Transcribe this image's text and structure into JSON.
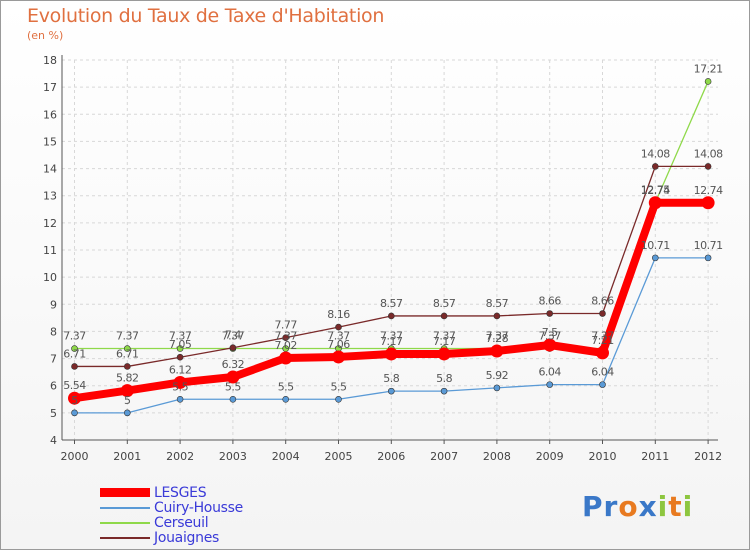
{
  "header": {
    "title": "Evolution du Taux de Taxe d'Habitation",
    "subtitle": "(en %)"
  },
  "logo": {
    "text": "Proxiti",
    "letters": [
      {
        "ch": "P",
        "color": "#3a78c8"
      },
      {
        "ch": "r",
        "color": "#3a78c8"
      },
      {
        "ch": "o",
        "color": "#e87a20"
      },
      {
        "ch": "x",
        "color": "#3a78c8"
      },
      {
        "ch": "i",
        "color": "#8dc63f"
      },
      {
        "ch": "t",
        "color": "#e87a20"
      },
      {
        "ch": "i",
        "color": "#8dc63f"
      }
    ]
  },
  "chart_data": {
    "type": "line",
    "title": "Evolution du Taux de Taxe d'Habitation",
    "subtitle": "(en %)",
    "xlabel": "",
    "ylabel": "",
    "x": [
      "2000",
      "2001",
      "2002",
      "2003",
      "2004",
      "2005",
      "2006",
      "2007",
      "2008",
      "2009",
      "2010",
      "2011",
      "2012"
    ],
    "ylim": [
      4,
      18
    ],
    "yticks": [
      "4",
      "5",
      "6",
      "7",
      "8",
      "9",
      "10",
      "11",
      "12",
      "13",
      "14",
      "15",
      "16",
      "17",
      "18"
    ],
    "grid": true,
    "legend_position": "bottom-left",
    "series": [
      {
        "name": "LESGES",
        "color": "#ff0000",
        "values": [
          5.54,
          5.82,
          6.12,
          6.32,
          7.02,
          7.06,
          7.17,
          7.17,
          7.28,
          7.5,
          7.21,
          12.74,
          12.74
        ],
        "labels": [
          "5.54",
          "5.82",
          "6.12",
          "6.32",
          "7.02",
          "7.06",
          "7.17",
          "7.17",
          "7.28",
          "7.5",
          "7.21",
          "12.74",
          "12.74"
        ]
      },
      {
        "name": "Cuiry-Housse",
        "color": "#5a9ad6",
        "values": [
          5,
          5,
          5.5,
          5.5,
          5.5,
          5.5,
          5.8,
          5.8,
          5.92,
          6.04,
          6.04,
          10.71,
          10.71
        ],
        "labels": [
          "5",
          "5",
          "5.5",
          "5.5",
          "5.5",
          "5.5",
          "5.8",
          "5.8",
          "5.92",
          "6.04",
          "6.04",
          "10.71",
          "10.71"
        ]
      },
      {
        "name": "Cerseuil",
        "color": "#8fd94a",
        "values": [
          7.37,
          7.37,
          7.37,
          7.37,
          7.37,
          7.37,
          7.37,
          7.37,
          7.37,
          7.37,
          7.37,
          12.75,
          17.21
        ],
        "labels": [
          "7.37",
          "7.37",
          "7.37",
          "7.37",
          "7.37",
          "7.37",
          "7.37",
          "7.37",
          "7.37",
          "7.37",
          "7.37",
          "12.75",
          "17.21"
        ]
      },
      {
        "name": "Jouaignes",
        "color": "#7a2a2a",
        "values": [
          6.71,
          6.71,
          7.05,
          7.4,
          7.77,
          8.16,
          8.57,
          8.57,
          8.57,
          8.66,
          8.66,
          14.08,
          14.08
        ],
        "labels": [
          "6.71",
          "6.71",
          "7.05",
          "7.4",
          "7.77",
          "8.16",
          "8.57",
          "8.57",
          "8.57",
          "8.66",
          "8.66",
          "14.08",
          "14.08"
        ]
      }
    ]
  }
}
